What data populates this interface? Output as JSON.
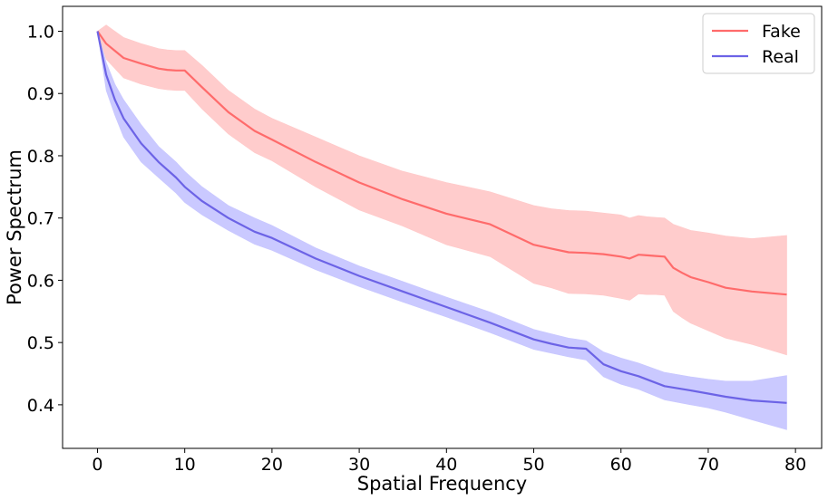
{
  "chart_data": {
    "type": "line",
    "title": "",
    "xlabel": "Spatial Frequency",
    "ylabel": "Power Spectrum",
    "xlim": [
      -4,
      83
    ],
    "ylim": [
      0.33,
      1.04
    ],
    "x_ticks": [
      0,
      10,
      20,
      30,
      40,
      50,
      60,
      70,
      80
    ],
    "x_tick_labels": [
      "0",
      "10",
      "20",
      "30",
      "40",
      "50",
      "60",
      "70",
      "80"
    ],
    "y_ticks": [
      0.4,
      0.5,
      0.6,
      0.7,
      0.8,
      0.9,
      1.0
    ],
    "y_tick_labels": [
      "0.4",
      "0.5",
      "0.6",
      "0.7",
      "0.8",
      "0.9",
      "1.0"
    ],
    "grid": false,
    "legend_position": "top-right",
    "series": [
      {
        "name": "Fake",
        "color": "#ff6b6b",
        "band_color": "#ffc9c9",
        "x": [
          0,
          1,
          3,
          5,
          7,
          8,
          9,
          10,
          12,
          15,
          18,
          20,
          25,
          30,
          35,
          40,
          45,
          50,
          52,
          54,
          56,
          58,
          60,
          61,
          62,
          63,
          64,
          65,
          66,
          67,
          68,
          70,
          72,
          75,
          79
        ],
        "values": [
          1.0,
          0.98,
          0.957,
          0.948,
          0.94,
          0.938,
          0.937,
          0.937,
          0.91,
          0.87,
          0.84,
          0.826,
          0.79,
          0.757,
          0.73,
          0.707,
          0.69,
          0.657,
          0.651,
          0.645,
          0.644,
          0.642,
          0.638,
          0.635,
          0.641,
          0.64,
          0.639,
          0.638,
          0.62,
          0.612,
          0.605,
          0.597,
          0.588,
          0.582,
          0.577
        ],
        "upper": [
          1.0,
          1.01,
          0.99,
          0.98,
          0.972,
          0.97,
          0.969,
          0.969,
          0.945,
          0.905,
          0.875,
          0.86,
          0.83,
          0.8,
          0.775,
          0.757,
          0.742,
          0.72,
          0.715,
          0.712,
          0.711,
          0.708,
          0.705,
          0.7,
          0.704,
          0.702,
          0.701,
          0.7,
          0.69,
          0.685,
          0.68,
          0.676,
          0.671,
          0.667,
          0.672
        ],
        "lower": [
          1.0,
          0.955,
          0.925,
          0.915,
          0.908,
          0.906,
          0.905,
          0.905,
          0.875,
          0.835,
          0.805,
          0.792,
          0.75,
          0.713,
          0.687,
          0.657,
          0.638,
          0.595,
          0.588,
          0.579,
          0.578,
          0.576,
          0.571,
          0.568,
          0.578,
          0.577,
          0.577,
          0.576,
          0.55,
          0.54,
          0.531,
          0.519,
          0.507,
          0.497,
          0.48
        ]
      },
      {
        "name": "Real",
        "color": "#6c63e6",
        "band_color": "#c7c6ff",
        "x": [
          0,
          1,
          2,
          3,
          5,
          7,
          9,
          10,
          12,
          15,
          18,
          20,
          25,
          30,
          35,
          40,
          45,
          50,
          52,
          54,
          56,
          58,
          60,
          62,
          65,
          68,
          70,
          72,
          75,
          79
        ],
        "values": [
          1.0,
          0.93,
          0.89,
          0.86,
          0.82,
          0.79,
          0.765,
          0.75,
          0.727,
          0.7,
          0.678,
          0.668,
          0.635,
          0.607,
          0.582,
          0.557,
          0.532,
          0.505,
          0.498,
          0.492,
          0.49,
          0.465,
          0.454,
          0.446,
          0.43,
          0.423,
          0.418,
          0.413,
          0.407,
          0.403
        ],
        "upper": [
          1.0,
          0.95,
          0.915,
          0.89,
          0.85,
          0.815,
          0.79,
          0.775,
          0.75,
          0.72,
          0.7,
          0.688,
          0.652,
          0.623,
          0.598,
          0.573,
          0.549,
          0.521,
          0.514,
          0.507,
          0.503,
          0.485,
          0.475,
          0.467,
          0.452,
          0.445,
          0.441,
          0.438,
          0.438,
          0.447
        ],
        "lower": [
          1.0,
          0.905,
          0.865,
          0.83,
          0.79,
          0.765,
          0.74,
          0.725,
          0.705,
          0.68,
          0.658,
          0.648,
          0.617,
          0.59,
          0.565,
          0.541,
          0.516,
          0.489,
          0.483,
          0.477,
          0.472,
          0.445,
          0.433,
          0.425,
          0.408,
          0.4,
          0.395,
          0.388,
          0.376,
          0.36
        ]
      }
    ]
  }
}
